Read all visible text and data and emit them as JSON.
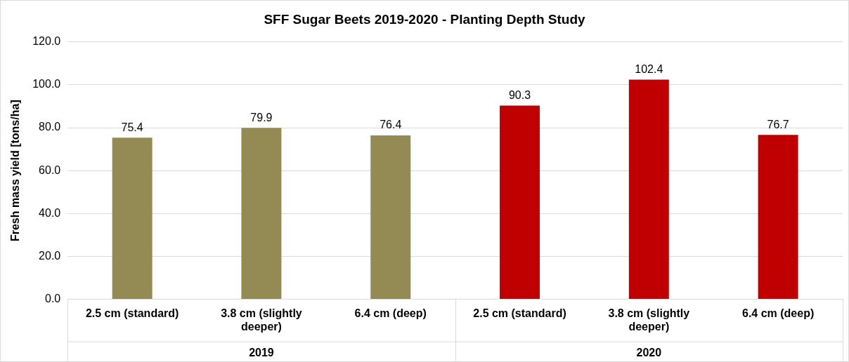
{
  "chart_data": {
    "type": "bar",
    "title": "SFF Sugar Beets 2019-2020 - Planting Depth Study",
    "ylabel": "Fresh mass yield [tons/ha]",
    "categories": [
      "2.5 cm (standard)",
      "3.8 cm (slightly deeper)",
      "6.4 cm (deep)",
      "2.5 cm (standard)",
      "3.8 cm (slightly deeper)",
      "6.4 cm (deep)"
    ],
    "values": [
      75.4,
      79.9,
      76.4,
      90.3,
      102.4,
      76.7
    ],
    "colors": [
      "#948a54",
      "#948a54",
      "#948a54",
      "#c00000",
      "#c00000",
      "#c00000"
    ],
    "annotations": [
      "2019",
      "2020"
    ],
    "ylim": [
      0,
      120
    ],
    "yticks": [
      {
        "value": 0,
        "label": "0.0"
      },
      {
        "value": 20,
        "label": "20.0"
      },
      {
        "value": 40,
        "label": "40.0"
      },
      {
        "value": 60,
        "label": "60.0"
      },
      {
        "value": 80,
        "label": "80.0"
      },
      {
        "value": 100,
        "label": "100.0"
      },
      {
        "value": 120,
        "label": "120.0"
      }
    ],
    "grid": "y",
    "data_labels": true
  }
}
